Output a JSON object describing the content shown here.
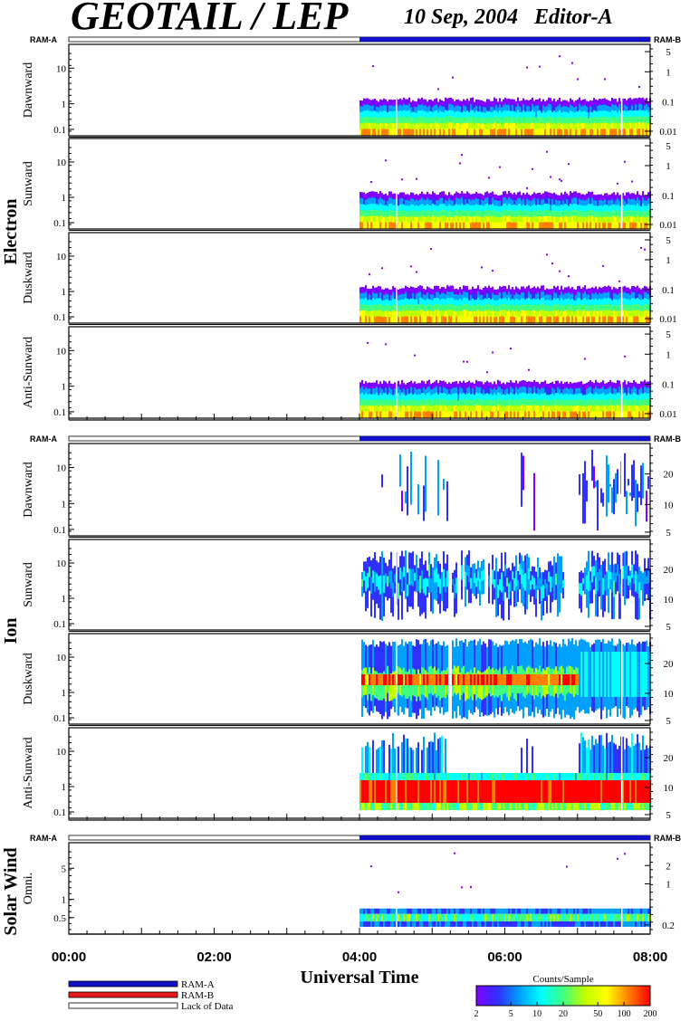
{
  "header": {
    "title": "GEOTAIL / LEP",
    "date_editor": "10 Sep, 2004   Editor-A"
  },
  "x_axis": {
    "label": "Universal Time",
    "ticks": [
      "00:00",
      "02:00",
      "04:00",
      "06:00",
      "08:00"
    ],
    "range_hours": [
      0,
      8
    ]
  },
  "mode_bar": {
    "left_label": "RAM-A",
    "right_label": "RAM-B",
    "ram_b_start_hour": 4.0
  },
  "groups": [
    {
      "name": "Electron",
      "panels": [
        {
          "label": "Dawnward",
          "left_ticks": [
            "10",
            "1",
            "0.1"
          ],
          "right_ticks": [
            "5",
            "1",
            "0.1",
            "0.01"
          ]
        },
        {
          "label": "Sunward",
          "left_ticks": [
            "10",
            "1",
            "0.1"
          ],
          "right_ticks": [
            "5",
            "1",
            "0.1",
            "0.01"
          ]
        },
        {
          "label": "Duskward",
          "left_ticks": [
            "10",
            "1",
            "0.1"
          ],
          "right_ticks": [
            "5",
            "1",
            "0.1",
            "0.01"
          ]
        },
        {
          "label": "Anti-Sunward",
          "left_ticks": [
            "10",
            "1",
            "0.1"
          ],
          "right_ticks": [
            "5",
            "1",
            "0.1",
            "0.01"
          ]
        }
      ]
    },
    {
      "name": "Ion",
      "panels": [
        {
          "label": "Dawnward",
          "left_ticks": [
            "10",
            "1",
            "0.1"
          ],
          "right_ticks": [
            "20",
            "10",
            "5"
          ]
        },
        {
          "label": "Sunward",
          "left_ticks": [
            "10",
            "1",
            "0.1"
          ],
          "right_ticks": [
            "20",
            "10",
            "5"
          ]
        },
        {
          "label": "Duskward",
          "left_ticks": [
            "10",
            "1",
            "0.1"
          ],
          "right_ticks": [
            "20",
            "10",
            "5"
          ]
        },
        {
          "label": "Anti-Sunward",
          "left_ticks": [
            "10",
            "1",
            "0.1"
          ],
          "right_ticks": [
            "20",
            "10",
            "5"
          ]
        }
      ]
    },
    {
      "name": "Solar Wind",
      "panels": [
        {
          "label": "Omni.",
          "left_ticks": [
            "5",
            "1",
            "0.5"
          ],
          "right_ticks": [
            "2",
            "1",
            "0.2"
          ]
        }
      ]
    }
  ],
  "legend": {
    "items": [
      {
        "label": "RAM-A",
        "color": "#1010c8"
      },
      {
        "label": "RAM-B",
        "color": "#e81818"
      },
      {
        "label": "Lack of Data",
        "color": "#ffffff"
      }
    ]
  },
  "colorbar": {
    "title": "Counts/Sample",
    "ticks": [
      "2",
      "5",
      "10",
      "20",
      "50",
      "100",
      "200"
    ],
    "colors": [
      "#8000ff",
      "#3030ff",
      "#00a0ff",
      "#00ffff",
      "#40ff80",
      "#c0ff00",
      "#ffff00",
      "#ff8000",
      "#ff0000"
    ]
  },
  "chart_data": {
    "type": "heatmap",
    "title": "GEOTAIL / LEP",
    "xlabel": "Universal Time",
    "x_ticks": [
      "00:00",
      "02:00",
      "04:00",
      "06:00",
      "08:00"
    ],
    "data_start_hour": 4.0,
    "data_end_hour": 8.0,
    "colorbar_range": [
      2,
      200
    ]
  }
}
